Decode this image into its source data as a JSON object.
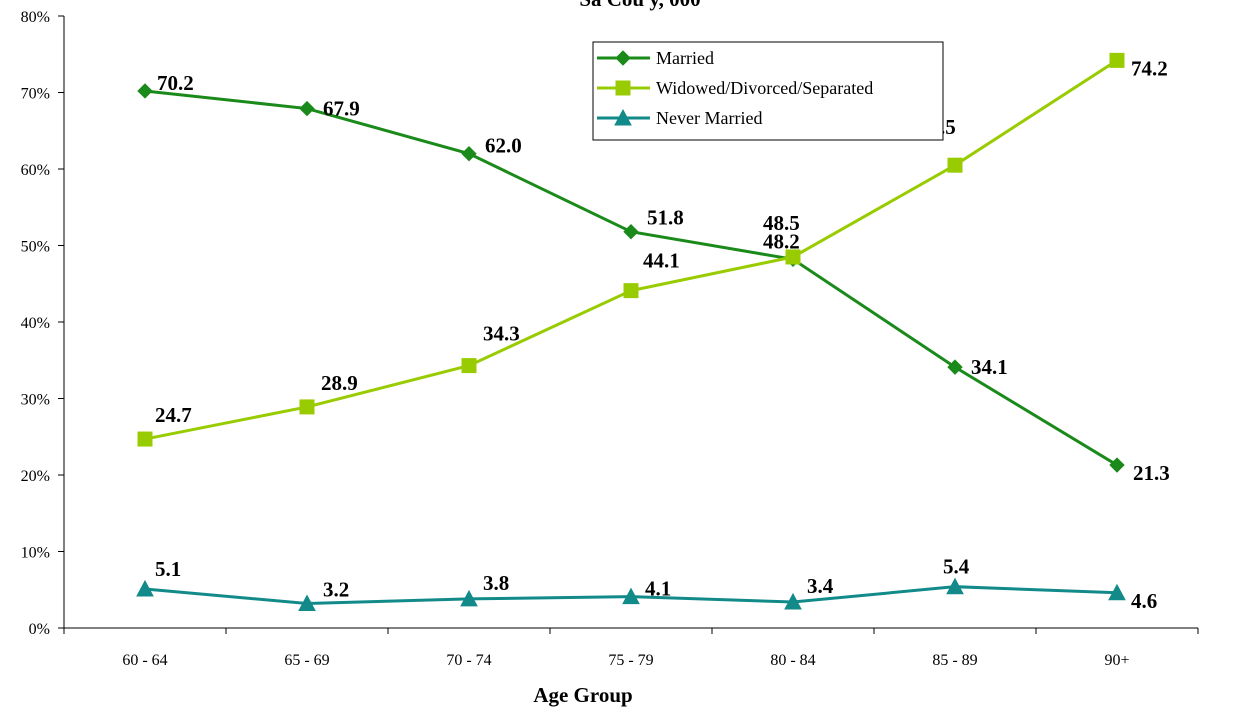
{
  "chart_data": {
    "type": "line",
    "title": "Sa     Cou   y, 000",
    "xlabel": "Age Group",
    "ylabel": "",
    "ylim": [
      0,
      80
    ],
    "yticks": [
      "0%",
      "10%",
      "20%",
      "30%",
      "40%",
      "50%",
      "60%",
      "70%",
      "80%"
    ],
    "categories": [
      "60 - 64",
      "65 - 69",
      "70 - 74",
      "75 - 79",
      "80 - 84",
      "85 - 89",
      "90+"
    ],
    "grid": false,
    "legend_position": "top-center",
    "series": [
      {
        "name": "Married",
        "color": "#1a8a1a",
        "marker": "diamond",
        "values": [
          70.2,
          67.9,
          62.0,
          51.8,
          48.2,
          34.1,
          21.3
        ],
        "labels": [
          "70.2",
          "67.9",
          "62.0",
          "51.8",
          "48.2",
          "34.1",
          "21.3"
        ]
      },
      {
        "name": "Widowed/Divorced/Separated",
        "color": "#99cc00",
        "marker": "square",
        "values": [
          24.7,
          28.9,
          34.3,
          44.1,
          48.5,
          60.5,
          74.2
        ],
        "labels": [
          "24.7",
          "28.9",
          "34.3",
          "44.1",
          "48.5",
          "60.5",
          "74.2"
        ]
      },
      {
        "name": "Never Married",
        "color": "#138a8a",
        "marker": "triangle",
        "values": [
          5.1,
          3.2,
          3.8,
          4.1,
          3.4,
          5.4,
          4.6
        ],
        "labels": [
          "5.1",
          "3.2",
          "3.8",
          "4.1",
          "3.4",
          "5.4",
          "4.6"
        ]
      }
    ]
  }
}
